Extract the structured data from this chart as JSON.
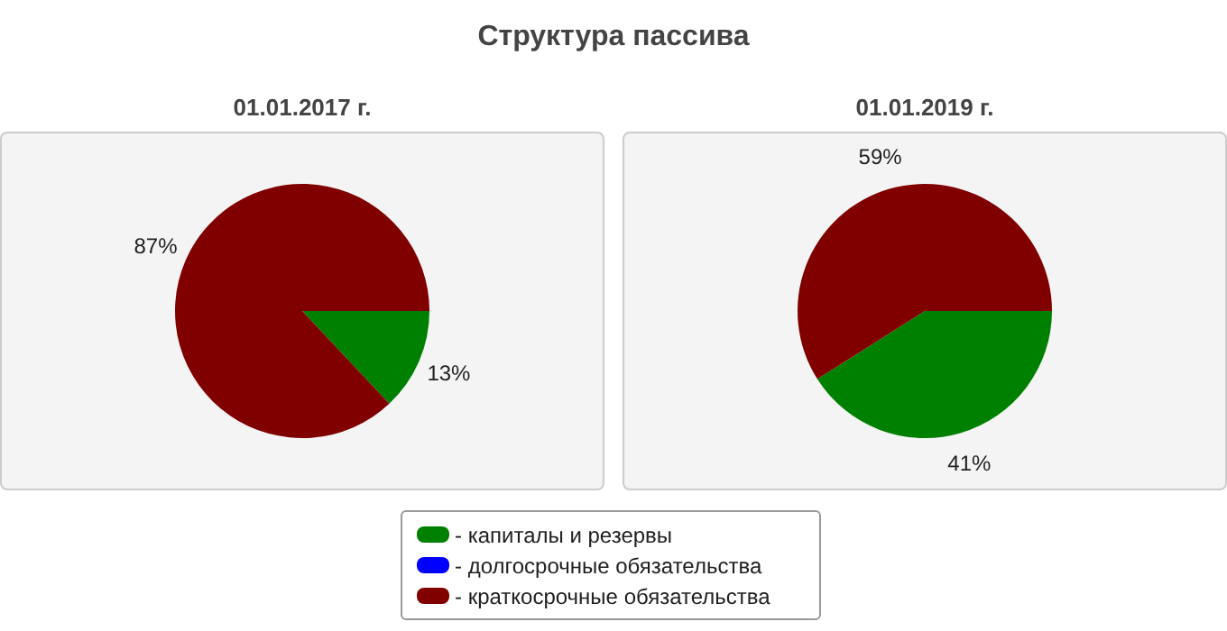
{
  "chart_data": [
    {
      "type": "pie",
      "title": "Структура пассива",
      "subtitle": "01.01.2017 г.",
      "categories": [
        "- капиталы и резервы",
        "- долгосрочные обязательства",
        "- краткосрочные обязательства"
      ],
      "values": [
        13,
        0,
        87
      ],
      "colors": [
        "#008000",
        "#0000ff",
        "#800000"
      ],
      "value_labels": [
        "13%",
        null,
        "87%"
      ],
      "legend": "bottom"
    },
    {
      "type": "pie",
      "subtitle": "01.01.2019 г.",
      "categories": [
        null,
        null,
        null
      ],
      "values": [
        41,
        0,
        59
      ],
      "colors": [
        "#008000",
        "#0000ff",
        "#800000"
      ],
      "value_labels": [
        "41%",
        null,
        "59%"
      ]
    }
  ]
}
